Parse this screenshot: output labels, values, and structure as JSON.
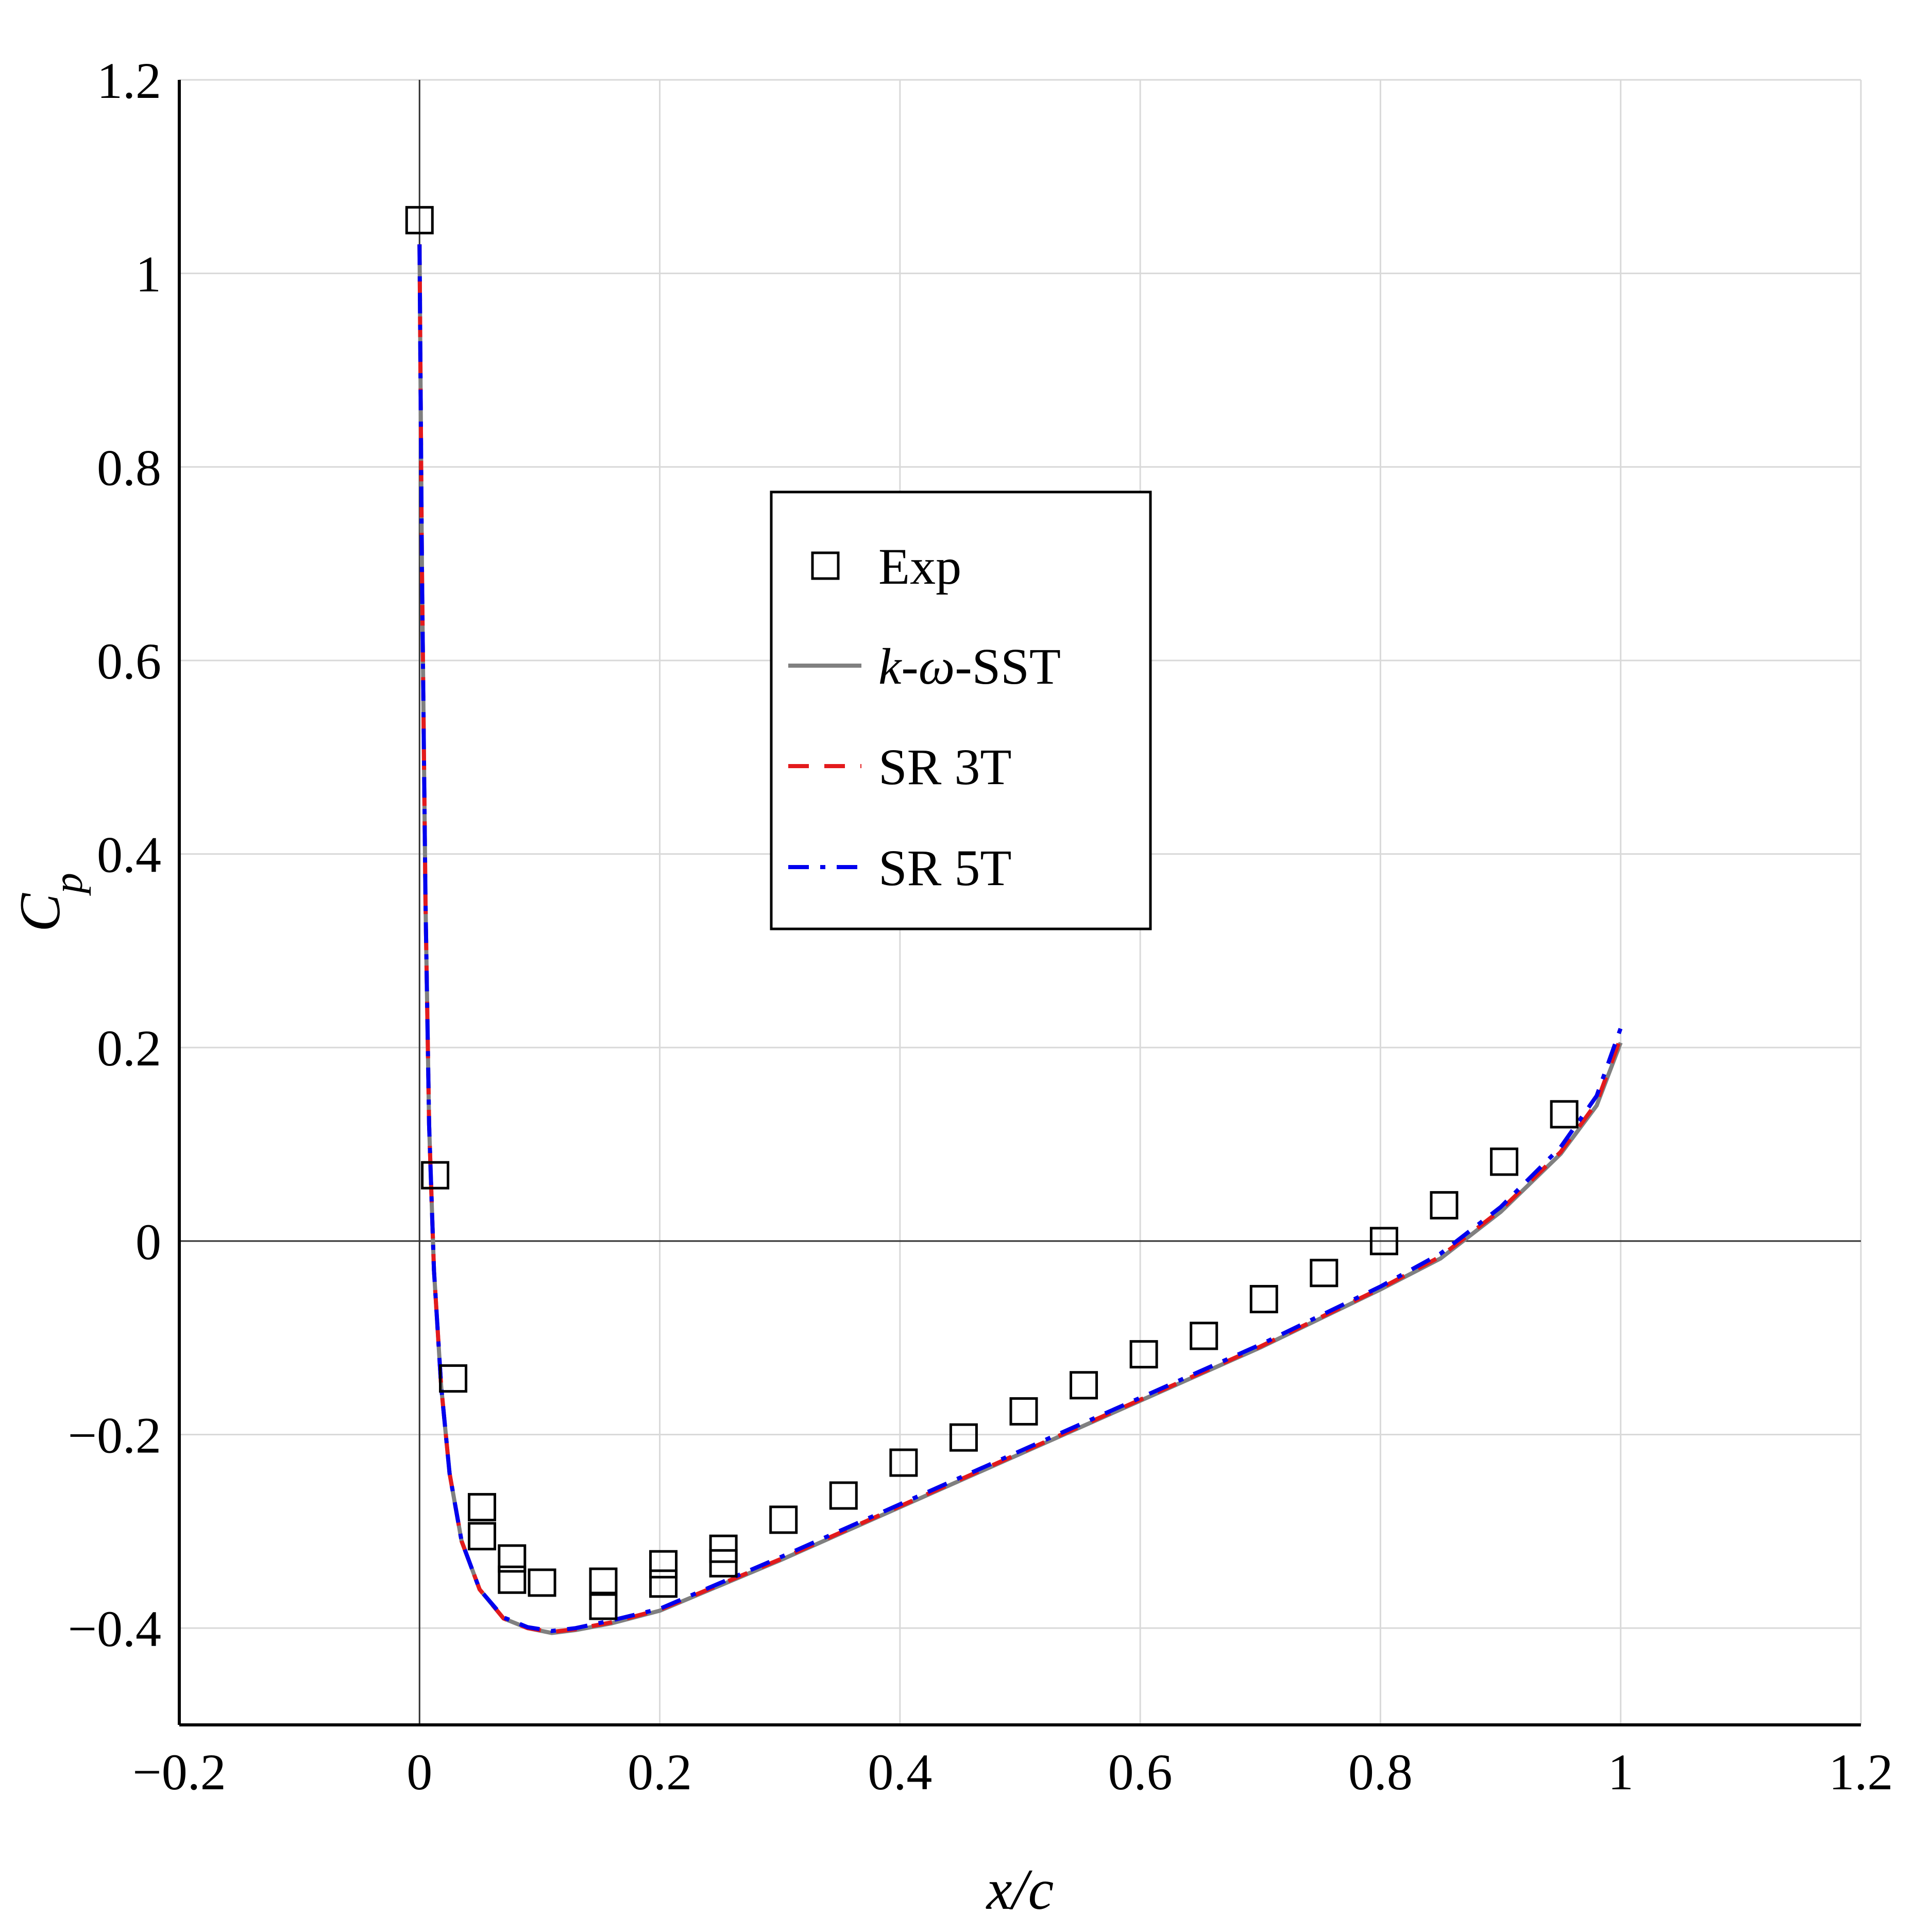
{
  "chart_data": {
    "type": "line",
    "title": "",
    "xlabel": "x/c",
    "ylabel": "Cp",
    "xlim": [
      -0.2,
      1.2
    ],
    "ylim": [
      -0.5,
      1.2
    ],
    "xticks": [
      -0.2,
      0,
      0.2,
      0.4,
      0.6,
      0.8,
      1,
      1.2
    ],
    "yticks": [
      -0.4,
      -0.2,
      0,
      0.2,
      0.4,
      0.6,
      0.8,
      1,
      1.2
    ],
    "xtick_labels": [
      "−0.2",
      "0",
      "0.2",
      "0.4",
      "0.6",
      "0.8",
      "1",
      "1.2"
    ],
    "ytick_labels": [
      "−0.4",
      "−0.2",
      "0",
      "0.2",
      "0.4",
      "0.6",
      "0.8",
      "1",
      "1.2"
    ],
    "grid": true,
    "legend_position": "center",
    "series": [
      {
        "name": "Exp",
        "kind": "markers",
        "marker": "square",
        "color": "#000000",
        "x": [
          0.0,
          0.013,
          0.028,
          0.052,
          0.052,
          0.077,
          0.077,
          0.102,
          0.153,
          0.153,
          0.203,
          0.203,
          0.253,
          0.253,
          0.303,
          0.353,
          0.403,
          0.453,
          0.503,
          0.553,
          0.603,
          0.653,
          0.703,
          0.753,
          0.803,
          0.853,
          0.903,
          0.953
        ],
        "y": [
          1.055,
          0.068,
          -0.142,
          -0.275,
          -0.305,
          -0.328,
          -0.35,
          -0.353,
          -0.352,
          -0.377,
          -0.334,
          -0.354,
          -0.318,
          -0.333,
          -0.288,
          -0.263,
          -0.229,
          -0.203,
          -0.176,
          -0.149,
          -0.117,
          -0.098,
          -0.06,
          -0.033,
          0.0,
          0.037,
          0.082,
          0.131
        ]
      },
      {
        "name": "k-ω-SST",
        "kind": "line",
        "dash": "solid",
        "color": "#808080",
        "x": [
          0.0,
          0.002,
          0.005,
          0.008,
          0.012,
          0.018,
          0.025,
          0.035,
          0.05,
          0.07,
          0.09,
          0.11,
          0.13,
          0.16,
          0.2,
          0.3,
          0.4,
          0.5,
          0.6,
          0.7,
          0.8,
          0.85,
          0.9,
          0.95,
          0.98,
          1.0
        ],
        "y": [
          1.03,
          0.7,
          0.35,
          0.12,
          -0.03,
          -0.15,
          -0.24,
          -0.31,
          -0.36,
          -0.39,
          -0.4,
          -0.405,
          -0.402,
          -0.395,
          -0.382,
          -0.33,
          -0.275,
          -0.22,
          -0.165,
          -0.11,
          -0.05,
          -0.018,
          0.03,
          0.09,
          0.14,
          0.205
        ]
      },
      {
        "name": "SR 3T",
        "kind": "line",
        "dash": "dashed",
        "color": "#e31a1c",
        "x": [
          0.0,
          0.002,
          0.005,
          0.008,
          0.012,
          0.018,
          0.025,
          0.035,
          0.05,
          0.07,
          0.09,
          0.11,
          0.13,
          0.16,
          0.2,
          0.3,
          0.4,
          0.5,
          0.6,
          0.7,
          0.8,
          0.85,
          0.9,
          0.95,
          0.98,
          1.0
        ],
        "y": [
          1.03,
          0.7,
          0.35,
          0.12,
          -0.03,
          -0.15,
          -0.24,
          -0.31,
          -0.36,
          -0.39,
          -0.4,
          -0.404,
          -0.401,
          -0.394,
          -0.381,
          -0.329,
          -0.274,
          -0.219,
          -0.164,
          -0.109,
          -0.049,
          -0.016,
          0.032,
          0.092,
          0.143,
          0.21
        ]
      },
      {
        "name": "SR 5T",
        "kind": "line",
        "dash": "dashdot",
        "color": "#0000ee",
        "x": [
          0.0,
          0.002,
          0.005,
          0.008,
          0.012,
          0.018,
          0.025,
          0.035,
          0.05,
          0.07,
          0.09,
          0.11,
          0.13,
          0.16,
          0.2,
          0.3,
          0.4,
          0.5,
          0.6,
          0.7,
          0.8,
          0.85,
          0.9,
          0.95,
          0.98,
          1.0
        ],
        "y": [
          1.03,
          0.7,
          0.35,
          0.12,
          -0.03,
          -0.15,
          -0.24,
          -0.31,
          -0.36,
          -0.389,
          -0.399,
          -0.403,
          -0.4,
          -0.392,
          -0.38,
          -0.327,
          -0.272,
          -0.217,
          -0.162,
          -0.107,
          -0.047,
          -0.013,
          0.035,
          0.097,
          0.15,
          0.22
        ]
      }
    ]
  }
}
